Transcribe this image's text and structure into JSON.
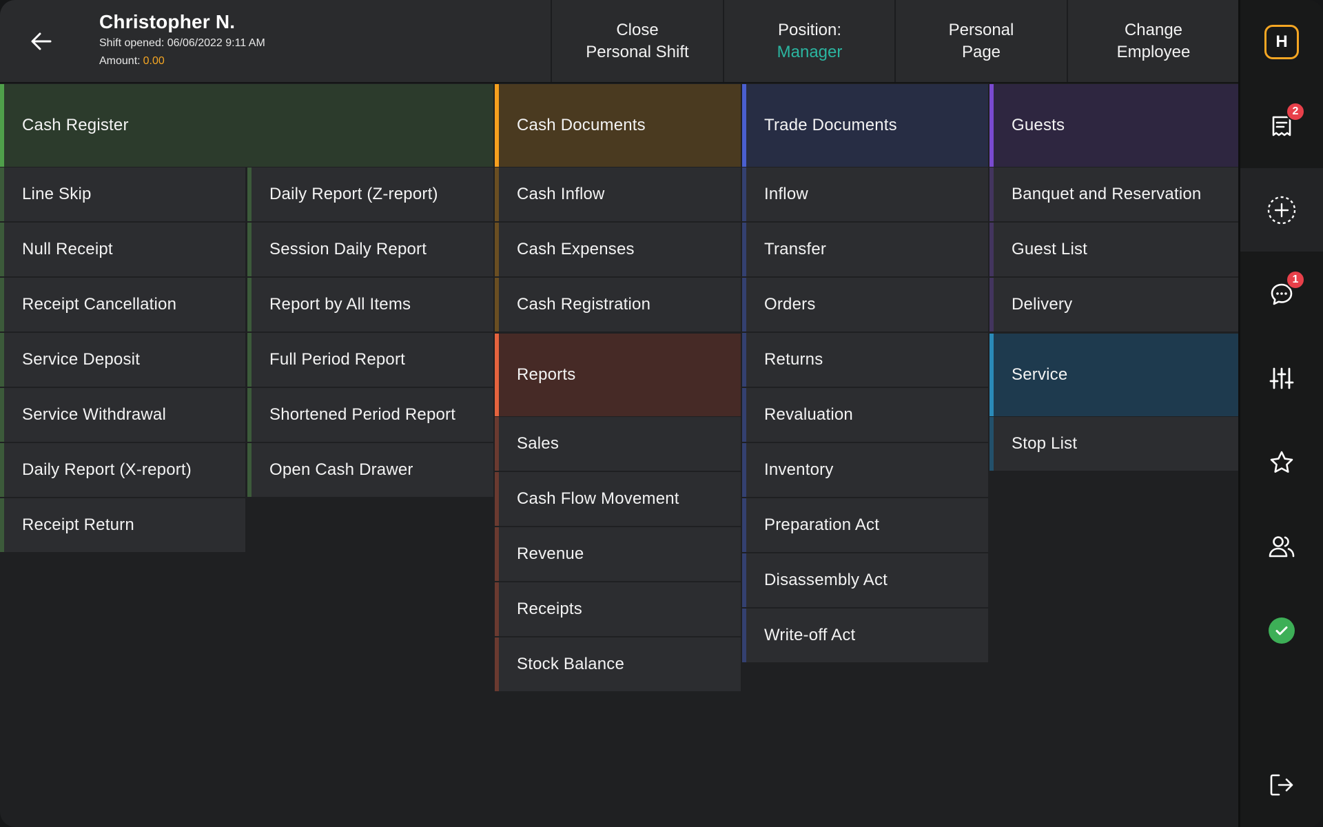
{
  "header": {
    "user_name": "Christopher N.",
    "shift_label": "Shift opened:",
    "shift_datetime": "06/06/2022 9:11 AM",
    "amount_label": "Amount:",
    "amount_value": "0.00",
    "buttons": {
      "close_shift": [
        "Close",
        "Personal Shift"
      ],
      "position": [
        "Position:",
        "Manager"
      ],
      "personal_page": [
        "Personal",
        "Page"
      ],
      "change_employee": [
        "Change",
        "Employee"
      ]
    }
  },
  "sections": {
    "cash_register": {
      "title": "Cash Register",
      "left": [
        "Line Skip",
        "Null Receipt",
        "Receipt Cancellation",
        "Service Deposit",
        "Service Withdrawal",
        "Daily Report (X-report)",
        "Receipt Return"
      ],
      "right": [
        "Daily Report (Z-report)",
        "Session Daily Report",
        "Report by All Items",
        "Full Period Report",
        "Shortened Period Report",
        "Open Cash Drawer"
      ]
    },
    "cash_documents": {
      "title": "Cash Documents",
      "items": [
        "Cash Inflow",
        "Cash Expenses",
        "Cash Registration"
      ]
    },
    "reports": {
      "title": "Reports",
      "items": [
        "Sales",
        "Cash Flow Movement",
        "Revenue",
        "Receipts",
        "Stock Balance"
      ]
    },
    "trade_documents": {
      "title": "Trade Documents",
      "items": [
        "Inflow",
        "Transfer",
        "Orders",
        "Returns",
        "Revaluation",
        "Inventory",
        "Preparation Act",
        "Disassembly Act",
        "Write-off Act"
      ]
    },
    "guests": {
      "title": "Guests",
      "items": [
        "Banquet and Reservation",
        "Guest List",
        "Delivery"
      ]
    },
    "service": {
      "title": "Service",
      "items": [
        "Stop List"
      ]
    }
  },
  "rail": {
    "logo_letter": "H",
    "receipts_badge": "2",
    "messages_badge": "1"
  },
  "colors": {
    "cash_register_head": "#2c3b2c",
    "cash_register_bar": "#4fa04a",
    "cash_register_item_bar": "#3c5a3a",
    "cash_documents_head": "#4a3a20",
    "cash_documents_bar": "#f5a01e",
    "cash_documents_item_bar": "#6a4e22",
    "reports_head": "#462a26",
    "reports_bar": "#e5633e",
    "reports_item_bar": "#6a3a30",
    "trade_head": "#272d44",
    "trade_bar": "#4a5fd0",
    "trade_item_bar": "#344070",
    "guests_head": "#2e2640",
    "guests_bar": "#7a4ad0",
    "guests_item_bar": "#43355e",
    "service_head": "#1e3a4e",
    "service_bar": "#2a8ab8",
    "service_item_bar": "#23506a",
    "accent_orange": "#f5a623",
    "accent_teal": "#2bb5a0"
  }
}
